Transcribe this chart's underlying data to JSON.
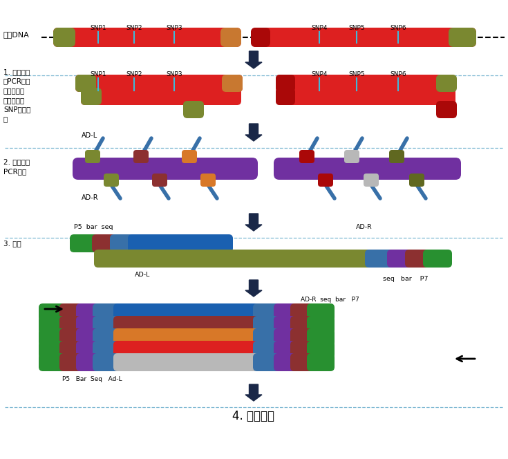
{
  "bg_color": "#ffffff",
  "title": "4. 上机测序",
  "label0": "起始DNA",
  "label1": "1. 多重长片\n段PCR跨越\n高同源区段\n特异性扩增\nSNP侧翼序\n列",
  "label2": "2. 多重巢式\nPCR扩增",
  "label3": "3. 建库",
  "snp_labels": [
    "SNP1",
    "SNP2",
    "SNP3",
    "SNP4",
    "SNP5",
    "SNP6"
  ],
  "colors": {
    "red": "#dd2020",
    "dark_red": "#aa0808",
    "olive": "#7a8c30",
    "orange": "#d87828",
    "blue": "#1a60b0",
    "purple": "#7030a0",
    "green": "#289030",
    "gray": "#b8b8b8",
    "brown": "#8c3030",
    "steel_blue": "#3870a8",
    "cyan_snp": "#40b8d8",
    "arrow_dark": "#1a2848",
    "sep_line": "#60a8c8",
    "dna_olive": "#7a8830",
    "dna_orange": "#c87830",
    "dark_olive": "#606820",
    "mauve": "#906070"
  }
}
